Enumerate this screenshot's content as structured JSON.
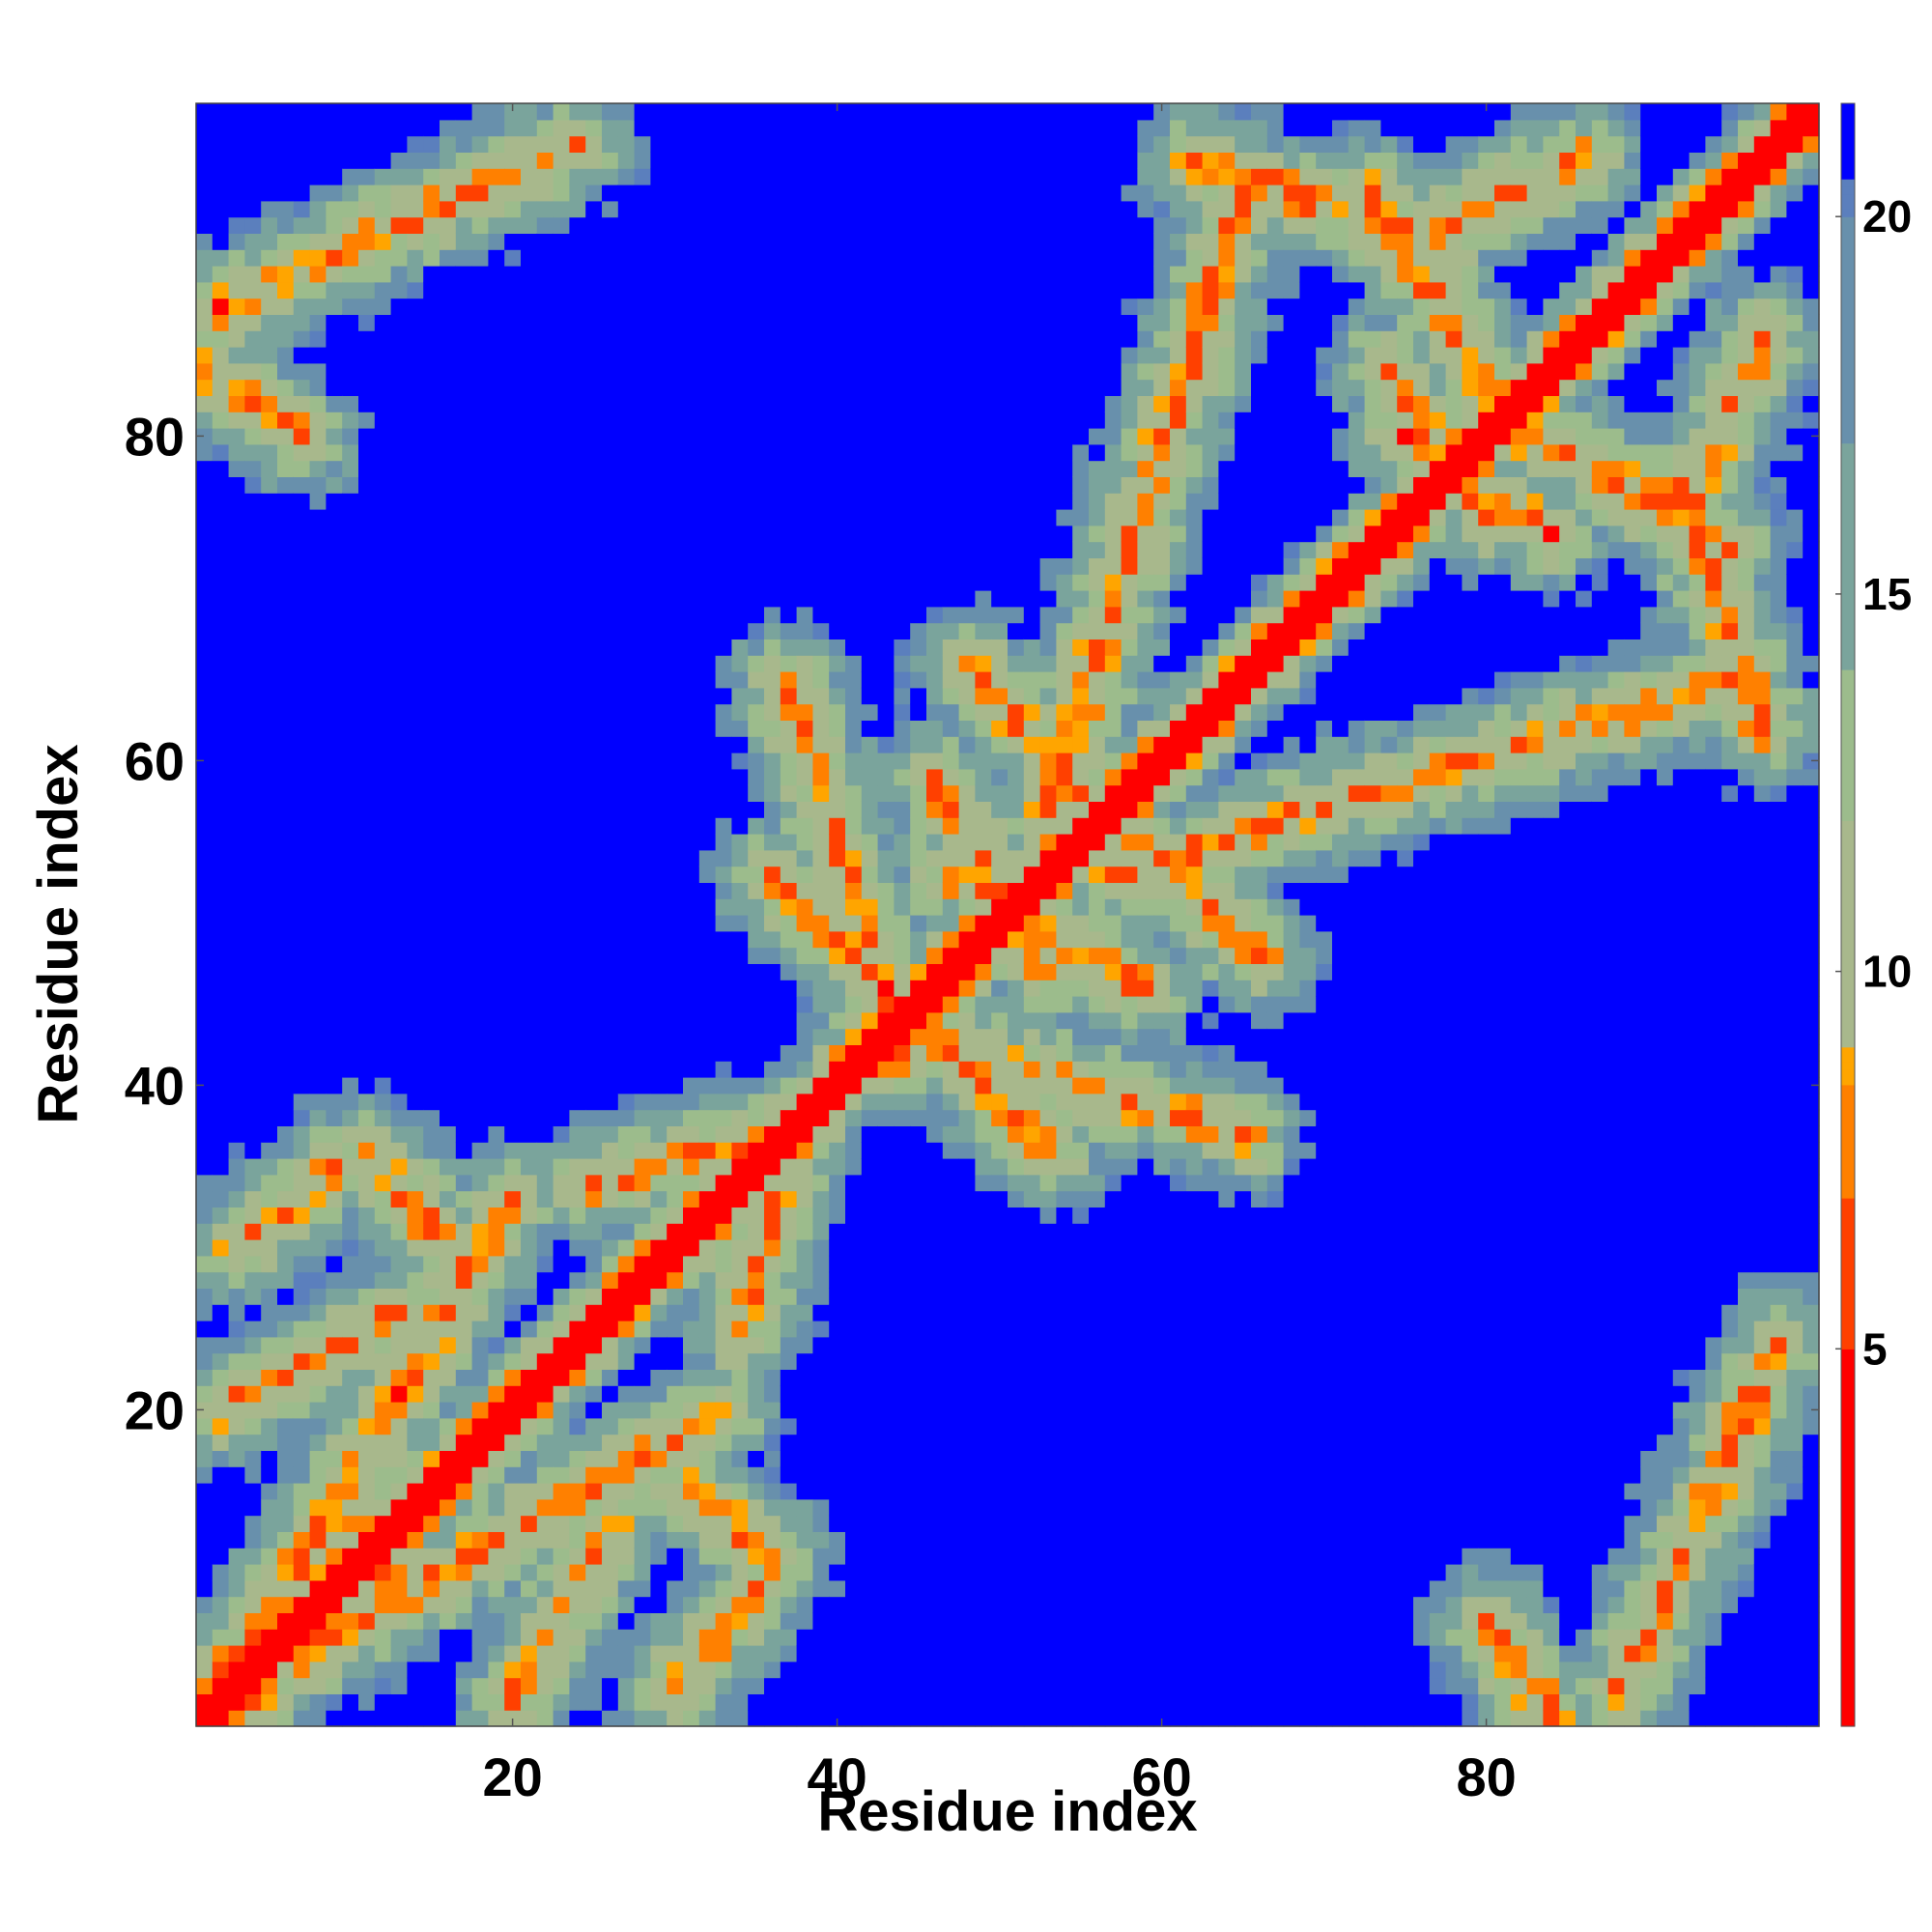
{
  "chart_data": {
    "type": "heatmap",
    "title": "",
    "xlabel": "Residue index",
    "ylabel": "Residue index",
    "n_residues": 100,
    "xlim": [
      1,
      100
    ],
    "ylim": [
      1,
      100
    ],
    "x_ticks": [
      20,
      40,
      60,
      80
    ],
    "y_ticks": [
      20,
      40,
      60,
      80
    ],
    "z_range": [
      0,
      21.5
    ],
    "colorbar": {
      "ticks": [
        5,
        10,
        15,
        20
      ],
      "palette": [
        {
          "v": 0,
          "color": "#ff0000"
        },
        {
          "v": 5,
          "color": "#ff4000"
        },
        {
          "v": 7,
          "color": "#ff8000"
        },
        {
          "v": 8.5,
          "color": "#ffa500"
        },
        {
          "v": 9,
          "color": "#a8b88c"
        },
        {
          "v": 12,
          "color": "#9cbc8c"
        },
        {
          "v": 14,
          "color": "#7aa49c"
        },
        {
          "v": 17,
          "color": "#6890ac"
        },
        {
          "v": 20,
          "color": "#5b7fbd"
        },
        {
          "v": 20.5,
          "color": "#0000ff"
        }
      ]
    },
    "contact_segments": [
      {
        "start": [
          13,
          11
        ],
        "end": [
          2,
          4
        ]
      },
      {
        "start": [
          20,
          2
        ],
        "end": [
          26,
          13
        ]
      },
      {
        "start": [
          31,
          15
        ],
        "end": [
          36,
          11
        ]
      },
      {
        "start": [
          35,
          9
        ],
        "end": [
          30,
          3
        ]
      },
      {
        "start": [
          37,
          36
        ],
        "end": [
          34,
          25
        ]
      },
      {
        "start": [
          44,
          42
        ],
        "end": [
          37,
          65
        ]
      },
      {
        "start": [
          46,
          43
        ],
        "end": [
          53,
          36
        ]
      },
      {
        "start": [
          47,
          53
        ],
        "end": [
          59,
          46
        ]
      },
      {
        "start": [
          56,
          57
        ],
        "end": [
          66,
          48
        ]
      },
      {
        "start": [
          65,
          95
        ],
        "end": [
          53,
          57
        ]
      },
      {
        "start": [
          77,
          93
        ],
        "end": [
          86,
          97
        ]
      },
      {
        "start": [
          75,
          80
        ],
        "end": [
          84,
          74
        ]
      },
      {
        "start": [
          80,
          82
        ],
        "end": [
          95,
          73
        ]
      },
      {
        "start": [
          88,
          2
        ],
        "end": [
          98,
          24
        ]
      },
      {
        "start": [
          80,
          7
        ],
        "end": [
          84,
          1
        ]
      },
      {
        "start": [
          62,
          97
        ],
        "end": [
          77,
          92
        ]
      },
      {
        "start": [
          2,
          2
        ],
        "end": [
          20,
          33
        ]
      }
    ]
  }
}
